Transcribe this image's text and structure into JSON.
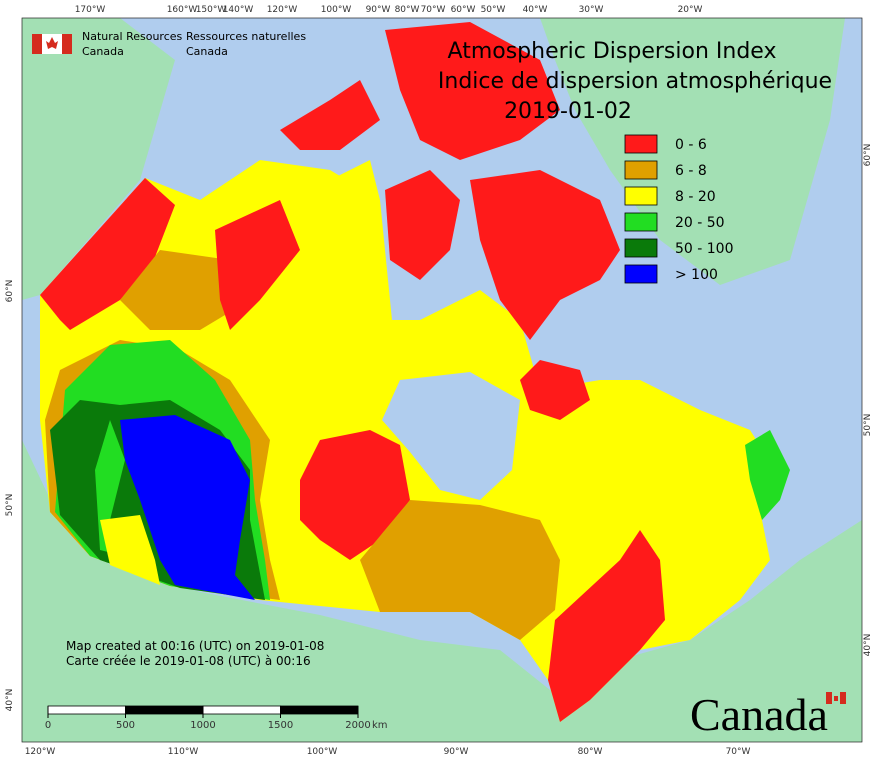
{
  "header": {
    "agency_en": [
      "Natural Resources",
      "Canada"
    ],
    "agency_fr": [
      "Ressources naturelles",
      "Canada"
    ]
  },
  "title": [
    "Atmospheric Dispersion Index",
    "Indice de dispersion atmosphérique"
  ],
  "date": "2019-01-02",
  "legend": [
    {
      "label": "0 - 6",
      "color": "#ff1a1a"
    },
    {
      "label": "6 - 8",
      "color": "#e0a000"
    },
    {
      "label": "8 - 20",
      "color": "#ffff00"
    },
    {
      "label": "20 - 50",
      "color": "#22dd22"
    },
    {
      "label": "50 - 100",
      "color": "#0a7a0a"
    },
    {
      "label": "> 100",
      "color": "#0000ff"
    }
  ],
  "graticule": {
    "top": [
      "170°W",
      "160°W",
      "150°W",
      "140°W",
      "120°W",
      "100°W",
      "90°W",
      "80°W",
      "70°W",
      "60°W",
      "50°W",
      "40°W",
      "30°W",
      "20°W"
    ],
    "bottom": [
      "120°W",
      "110°W",
      "100°W",
      "90°W",
      "80°W",
      "70°W"
    ],
    "left": [
      "60°N",
      "50°N",
      "40°N"
    ],
    "right": [
      "60°N",
      "50°N",
      "40°N"
    ]
  },
  "footer": [
    "Map created at 00:16 (UTC) on 2019-01-08",
    "Carte créée le 2019-01-08 (UTC) à 00:16"
  ],
  "scale": {
    "ticks": [
      0,
      500,
      1000,
      1500,
      2000
    ],
    "unit": "km"
  },
  "wordmark": "Canada"
}
